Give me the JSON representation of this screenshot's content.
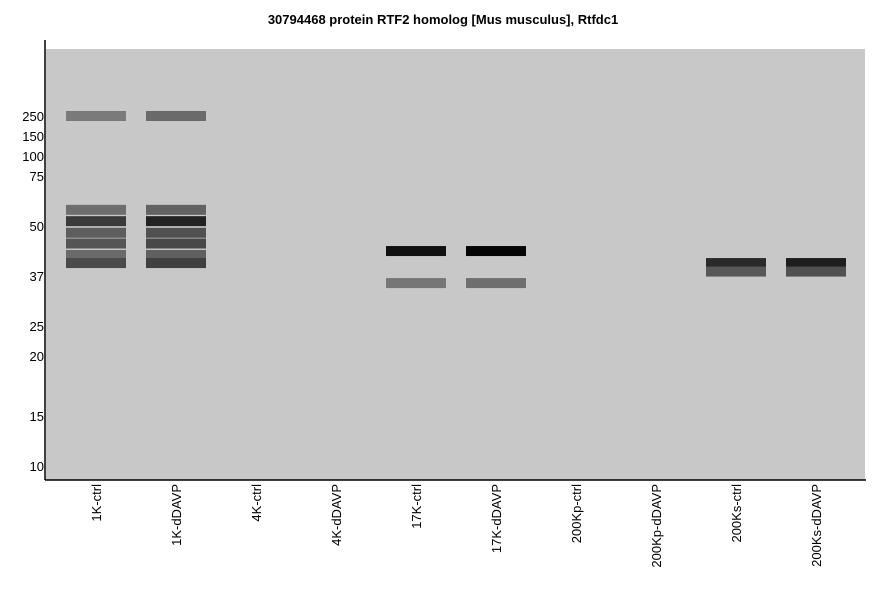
{
  "chart_data": {
    "type": "gel-blot",
    "title": "30794468 protein RTF2 homolog [Mus musculus], Rtfdc1",
    "background_color": "#c8c8c8",
    "y_axis": {
      "scale": "log",
      "unit": "kDa",
      "ticks": [
        250,
        150,
        100,
        75,
        50,
        37,
        25,
        20,
        15,
        10
      ]
    },
    "lanes": [
      "1K-ctrl",
      "1K-dDAVP",
      "4K-ctrl",
      "4K-dDAVP",
      "17K-ctrl",
      "17K-dDAVP",
      "200Kp-ctrl",
      "200Kp-dDAVP",
      "200Ks-ctrl",
      "200Ks-dDAVP"
    ],
    "bands": [
      {
        "lane": "1K-ctrl",
        "mw": 250,
        "color": "#7a7a7a"
      },
      {
        "lane": "1K-ctrl",
        "mw": 57,
        "color": "#6e6e6e"
      },
      {
        "lane": "1K-ctrl",
        "mw": 52,
        "color": "#3a3a3a"
      },
      {
        "lane": "1K-ctrl",
        "mw": 48,
        "color": "#5e5e5e"
      },
      {
        "lane": "1K-ctrl",
        "mw": 45,
        "color": "#555555"
      },
      {
        "lane": "1K-ctrl",
        "mw": 42,
        "color": "#6a6a6a"
      },
      {
        "lane": "1K-ctrl",
        "mw": 40,
        "color": "#4a4a4a"
      },
      {
        "lane": "1K-dDAVP",
        "mw": 250,
        "color": "#6a6a6a"
      },
      {
        "lane": "1K-dDAVP",
        "mw": 57,
        "color": "#626262"
      },
      {
        "lane": "1K-dDAVP",
        "mw": 52,
        "color": "#222222"
      },
      {
        "lane": "1K-dDAVP",
        "mw": 48,
        "color": "#505050"
      },
      {
        "lane": "1K-dDAVP",
        "mw": 45,
        "color": "#484848"
      },
      {
        "lane": "1K-dDAVP",
        "mw": 42,
        "color": "#606060"
      },
      {
        "lane": "1K-dDAVP",
        "mw": 40,
        "color": "#404040"
      },
      {
        "lane": "17K-ctrl",
        "mw": 43,
        "color": "#111111"
      },
      {
        "lane": "17K-ctrl",
        "mw": 35,
        "color": "#767676"
      },
      {
        "lane": "17K-dDAVP",
        "mw": 43,
        "color": "#050505"
      },
      {
        "lane": "17K-dDAVP",
        "mw": 35,
        "color": "#6e6e6e"
      },
      {
        "lane": "200Ks-ctrl",
        "mw": 40,
        "color": "#2a2a2a"
      },
      {
        "lane": "200Ks-ctrl",
        "mw": 38,
        "color": "#585858"
      },
      {
        "lane": "200Ks-dDAVP",
        "mw": 40,
        "color": "#1e1e1e"
      },
      {
        "lane": "200Ks-dDAVP",
        "mw": 38,
        "color": "#505050"
      }
    ]
  }
}
